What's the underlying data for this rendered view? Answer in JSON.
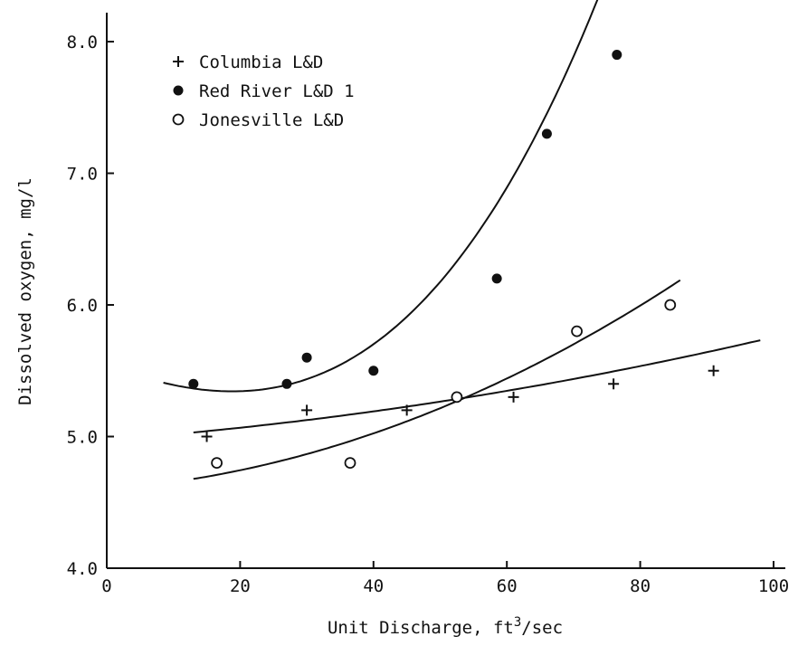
{
  "chart_data": {
    "type": "scatter",
    "xlabel": "Unit Discharge, ft",
    "xlabel_sup": "3",
    "xlabel_suffix": "/sec",
    "ylabel": "Dissolved oxygen, mg/l",
    "xlim": [
      0,
      100
    ],
    "ylim": [
      4.0,
      8.0
    ],
    "x_ticks": [
      0,
      20,
      40,
      60,
      80,
      100
    ],
    "x_tick_labels": [
      "0",
      "20",
      "40",
      "60",
      "80",
      "100"
    ],
    "y_ticks": [
      4.0,
      5.0,
      6.0,
      7.0,
      8.0
    ],
    "y_tick_labels": [
      "4.0",
      "5.0",
      "6.0",
      "7.0",
      "8.0"
    ],
    "grid": false,
    "legend_position": "top-left",
    "series": [
      {
        "name": "Columbia L&D",
        "marker": "plus",
        "points": [
          [
            15,
            5.0
          ],
          [
            30,
            5.2
          ],
          [
            45,
            5.2
          ],
          [
            61,
            5.3
          ],
          [
            76,
            5.4
          ],
          [
            91,
            5.5
          ]
        ],
        "fit_x_range": [
          13,
          98
        ],
        "fit_coeffs": [
          4.975,
          0.0038,
          4e-05
        ]
      },
      {
        "name": "Red River L&D 1",
        "marker": "filled-circle",
        "points": [
          [
            13,
            5.4
          ],
          [
            27,
            5.4
          ],
          [
            30,
            5.6
          ],
          [
            40,
            5.5
          ],
          [
            58.5,
            6.2
          ],
          [
            66,
            7.3
          ],
          [
            76.5,
            7.9
          ]
        ],
        "fit_x_range": [
          8.5,
          77
        ],
        "fit_coeffs": [
          5.5436,
          -0.01925,
          0.0003486,
          5.78e-06
        ]
      },
      {
        "name": "Jonesville L&D",
        "marker": "open-circle",
        "points": [
          [
            16.5,
            4.8
          ],
          [
            36.5,
            4.8
          ],
          [
            52.5,
            5.3
          ],
          [
            70.5,
            5.8
          ],
          [
            84.5,
            6.0
          ]
        ],
        "fit_x_range": [
          13,
          86
        ],
        "fit_coeffs": [
          4.601,
          0.00372,
          0.0001713
        ]
      }
    ]
  }
}
